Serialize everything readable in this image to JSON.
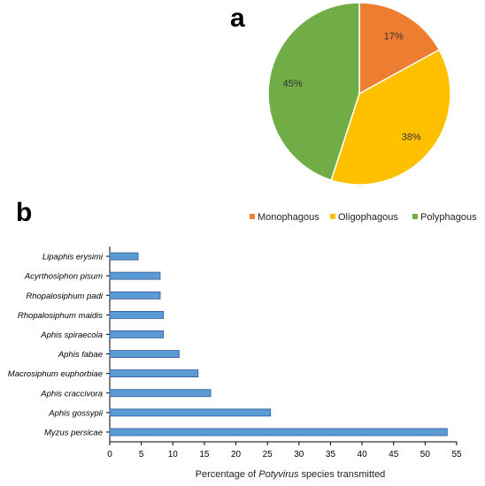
{
  "panel_a": {
    "letter": "a"
  },
  "panel_b": {
    "letter": "b"
  },
  "chart_data": [
    {
      "type": "pie",
      "slices": [
        {
          "label": "Monophagous",
          "value": 17,
          "display": "17%",
          "color": "#ed7d31"
        },
        {
          "label": "Oligophagous",
          "value": 38,
          "display": "38%",
          "color": "#ffc000"
        },
        {
          "label": "Polyphagous",
          "value": 45,
          "display": "45%",
          "color": "#70ad47"
        }
      ],
      "legend": {
        "position": "bottom-right",
        "entries": [
          "Monophagous",
          "Oligophagous",
          "Polyphagous"
        ]
      }
    },
    {
      "type": "bar",
      "orientation": "horizontal",
      "categories": [
        "Lipaphis erysimi",
        "Acyrthosiphon pisum",
        "Rhopalosiphum padi",
        "Rhopalosiphum maidis",
        "Aphis spiraecola",
        "Aphis fabae",
        "Macrosiphum euphorbiae",
        "Aphis craccivora",
        "Aphis gossypii",
        "Myzus persicae"
      ],
      "values": [
        4.5,
        8,
        8,
        8.5,
        8.5,
        11,
        14,
        16,
        25.5,
        53.5
      ],
      "xlabel_parts": [
        "Percentage of ",
        "Potyvirus",
        " species transmitted"
      ],
      "xlim": [
        0,
        55
      ],
      "xticks": [
        0,
        5,
        10,
        15,
        20,
        25,
        30,
        35,
        40,
        45,
        50,
        55
      ],
      "bar_color": "#5b9bd5",
      "bar_edge": "#2f5597",
      "grid": false
    }
  ]
}
